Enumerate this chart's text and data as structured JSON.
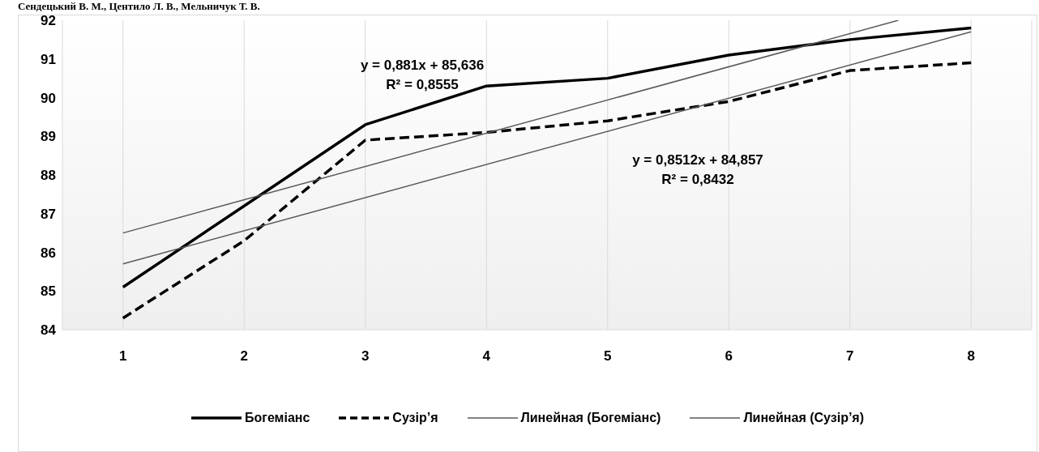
{
  "chart_data": {
    "type": "line",
    "x": [
      1,
      2,
      3,
      4,
      5,
      6,
      7,
      8
    ],
    "series": [
      {
        "name": "Богеміанс",
        "color": "#000000",
        "line_style": "solid",
        "values": [
          85.1,
          87.2,
          89.3,
          90.3,
          90.5,
          91.1,
          91.5,
          91.8
        ]
      },
      {
        "name": "Сузір’я",
        "color": "#000000",
        "line_style": "dashed",
        "values": [
          84.3,
          86.3,
          88.9,
          89.1,
          89.4,
          89.9,
          90.7,
          90.9
        ]
      },
      {
        "name": "Линейная (Богеміанс)",
        "color": "#595959",
        "line_style": "solid",
        "x": [
          1,
          7.4
        ],
        "values": [
          86.5,
          92.0
        ]
      },
      {
        "name": "Линейная (Сузір’я)",
        "color": "#595959",
        "line_style": "solid",
        "x": [
          1,
          8
        ],
        "values": [
          85.7,
          91.7
        ]
      }
    ],
    "xlim": [
      0.5,
      8.5
    ],
    "xticks": [
      1,
      2,
      3,
      4,
      5,
      6,
      7,
      8
    ],
    "ylim": [
      84,
      92
    ],
    "yticks": [
      84,
      85,
      86,
      87,
      88,
      89,
      90,
      91,
      92
    ],
    "grid": "x",
    "legend": "bottom",
    "marker": "none",
    "annotations": [
      "Сендецький В. М., Центило Л. В., Мельничук Т. В.",
      "y = 0,881x + 85,636",
      "R² = 0,8555",
      "y = 0,8512x + 84,857",
      "R² = 0,8432"
    ]
  }
}
